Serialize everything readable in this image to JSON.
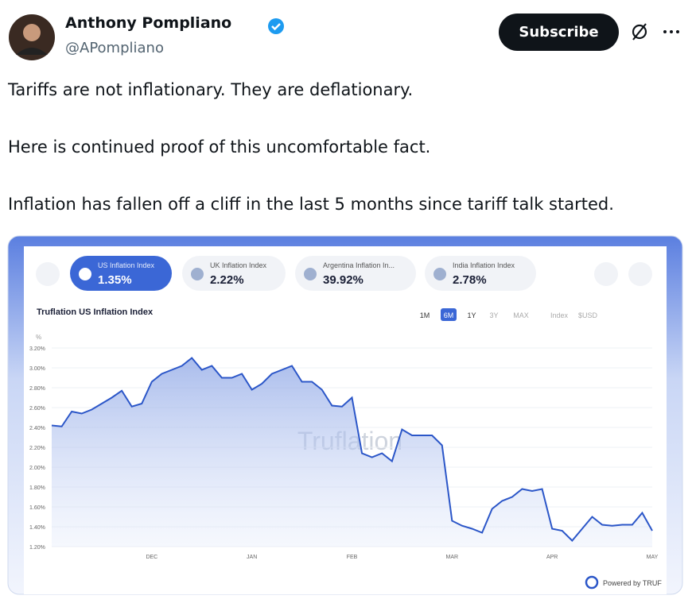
{
  "tweet": {
    "name": "Anthony Pompliano",
    "handle": "@APompliano",
    "subscribe": "Subscribe",
    "paragraphs": [
      "Tariffs are not inflationary. They are deflationary.",
      "Here is continued proof of this uncomfortable fact.",
      "Inflation has fallen off a cliff in the last 5 months since tariff talk started."
    ]
  },
  "cards": [
    {
      "label": "US Inflation Index",
      "value": "1.35%"
    },
    {
      "label": "UK Inflation Index",
      "value": "2.22%"
    },
    {
      "label": "Argentina Inflation In...",
      "value": "39.92%"
    },
    {
      "label": "India Inflation Index",
      "value": "2.78%"
    }
  ],
  "tabs": [
    "1M",
    "6M",
    "1Y",
    "3Y",
    "MAX"
  ],
  "modes": [
    "Index",
    "$USD"
  ],
  "watermark": "Truflation",
  "powered": "Powered by TRUF",
  "chart_data": {
    "type": "line",
    "title": "Truflation US Inflation Index",
    "y_label": "%",
    "categories": [
      null,
      null,
      null,
      null,
      null,
      null,
      null,
      null,
      null,
      null,
      "DEC",
      null,
      null,
      null,
      null,
      null,
      null,
      null,
      null,
      null,
      "JAN",
      null,
      null,
      null,
      null,
      null,
      null,
      null,
      null,
      null,
      "FEB",
      null,
      null,
      null,
      null,
      null,
      null,
      null,
      null,
      null,
      "MAR",
      null,
      null,
      null,
      null,
      null,
      null,
      null,
      null,
      null,
      "APR",
      null,
      null,
      null,
      null,
      null,
      null,
      null,
      null,
      null,
      "MAY"
    ],
    "series": [
      {
        "name": "US Inflation Index",
        "color": "#2b56c8",
        "values": [
          2.42,
          2.41,
          2.56,
          2.54,
          2.58,
          2.64,
          2.7,
          2.77,
          2.61,
          2.64,
          2.86,
          2.94,
          2.98,
          3.02,
          3.1,
          2.98,
          3.02,
          2.9,
          2.9,
          2.94,
          2.78,
          2.84,
          2.94,
          2.98,
          3.02,
          2.86,
          2.86,
          2.78,
          2.62,
          2.61,
          2.7,
          2.14,
          2.1,
          2.14,
          2.06,
          2.38,
          2.32,
          2.32,
          2.32,
          2.22,
          1.46,
          1.41,
          1.38,
          1.34,
          1.58,
          1.66,
          1.7,
          1.78,
          1.76,
          1.78,
          1.38,
          1.36,
          1.26,
          1.38,
          1.5,
          1.42,
          1.41,
          1.42,
          1.42,
          1.54,
          1.36
        ]
      }
    ],
    "ylim": [
      1.2,
      3.2
    ],
    "yticks": [
      {
        "value": 1.2,
        "label": "1.20%"
      },
      {
        "value": 1.4,
        "label": "1.40%"
      },
      {
        "value": 1.6,
        "label": "1.60%"
      },
      {
        "value": 1.8,
        "label": "1.80%"
      },
      {
        "value": 2.0,
        "label": "2.00%"
      },
      {
        "value": 2.2,
        "label": "2.20%"
      },
      {
        "value": 2.4,
        "label": "2.40%"
      },
      {
        "value": 2.6,
        "label": "2.60%"
      },
      {
        "value": 2.8,
        "label": "2.80%"
      },
      {
        "value": 3.0,
        "label": "3.00%"
      },
      {
        "value": 3.2,
        "label": "3.20%"
      }
    ],
    "grid": true
  }
}
